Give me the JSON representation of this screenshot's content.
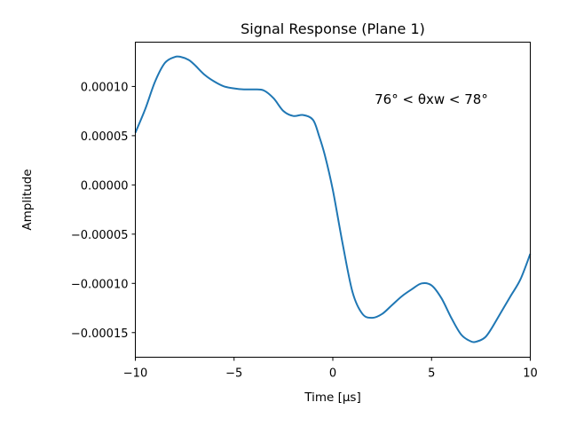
{
  "chart_data": {
    "type": "line",
    "title": "Signal Response (Plane 1)",
    "xlabel": "Time [μs]",
    "ylabel": "Amplitude",
    "xlim": [
      -10,
      10
    ],
    "ylim": [
      -0.000175,
      0.000145
    ],
    "x_ticks": [
      -10,
      -5,
      0,
      5,
      10
    ],
    "x_tick_labels": [
      "−10",
      "−5",
      "0",
      "5",
      "10"
    ],
    "y_ticks": [
      0.0001,
      5e-05,
      0.0,
      -5e-05,
      -0.0001,
      -0.00015
    ],
    "y_tick_labels": [
      "0.00010",
      "0.00005",
      "0.00000",
      "−0.00005",
      "−0.00010",
      "−0.00015"
    ],
    "annotation": "76° < θxw < 78°",
    "grid": false,
    "series": [
      {
        "color": "#1f77b4",
        "x": [
          -10,
          -9.5,
          -9,
          -8.5,
          -8,
          -7.7,
          -7.3,
          -7,
          -6.5,
          -6,
          -5.5,
          -5,
          -4.5,
          -4,
          -3.5,
          -3,
          -2.5,
          -2,
          -1.5,
          -1,
          -0.7,
          -0.4,
          0,
          0.5,
          1,
          1.5,
          2,
          2.5,
          3,
          3.5,
          4,
          4.5,
          5,
          5.5,
          6,
          6.5,
          7,
          7.3,
          7.7,
          8,
          8.5,
          9,
          9.5,
          10
        ],
        "y": [
          5.3e-05,
          7.7e-05,
          0.000105,
          0.000124,
          0.00013,
          0.00013,
          0.000127,
          0.000122,
          0.000112,
          0.000105,
          0.0001,
          9.8e-05,
          9.7e-05,
          9.7e-05,
          9.6e-05,
          8.8e-05,
          7.5e-05,
          7e-05,
          7.1e-05,
          6.6e-05,
          5e-05,
          3e-05,
          -5e-06,
          -6e-05,
          -0.000109,
          -0.000131,
          -0.000135,
          -0.000131,
          -0.000122,
          -0.000113,
          -0.000106,
          -0.0001,
          -0.000102,
          -0.000115,
          -0.000135,
          -0.000152,
          -0.000159,
          -0.000159,
          -0.000155,
          -0.000147,
          -0.00013,
          -0.000113,
          -9.6e-05,
          -7e-05
        ]
      }
    ]
  }
}
